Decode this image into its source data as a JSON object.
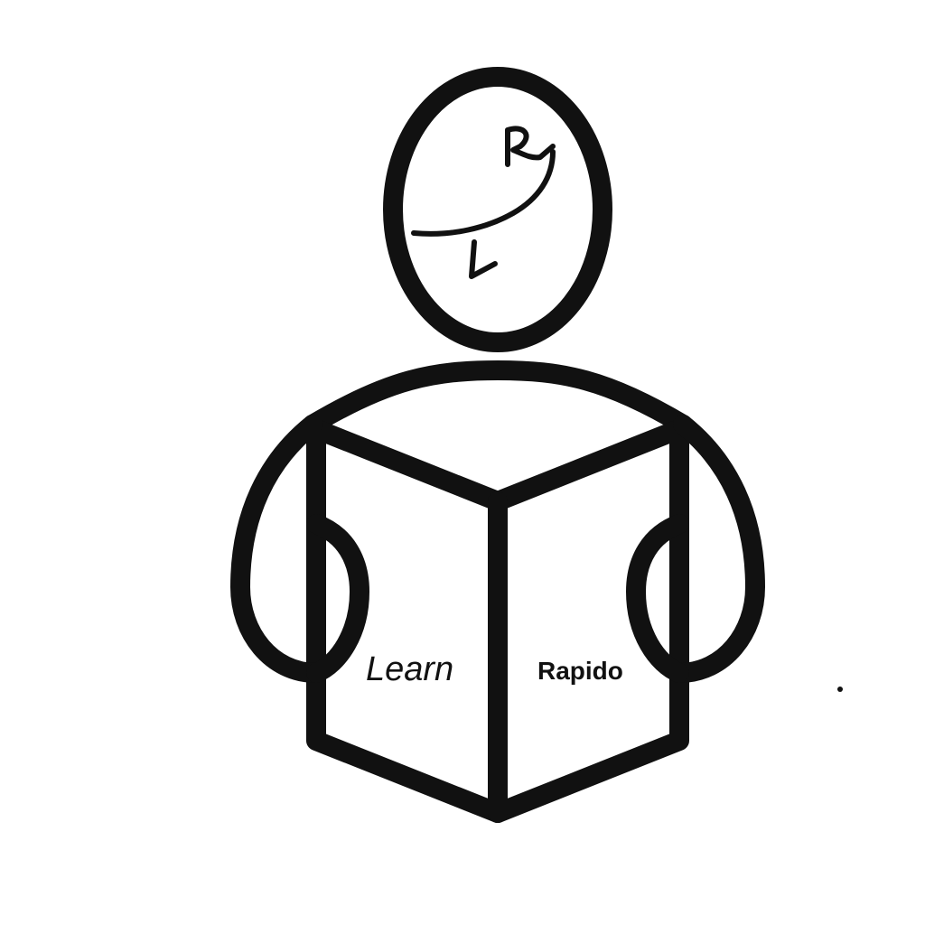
{
  "logo": {
    "page_left_label": "Learn",
    "page_right_label": "Rapido",
    "head_monogram": {
      "upper_letter": "R",
      "lower_letter": "L"
    },
    "ink_color": "#111111",
    "background_color": "#ffffff"
  }
}
